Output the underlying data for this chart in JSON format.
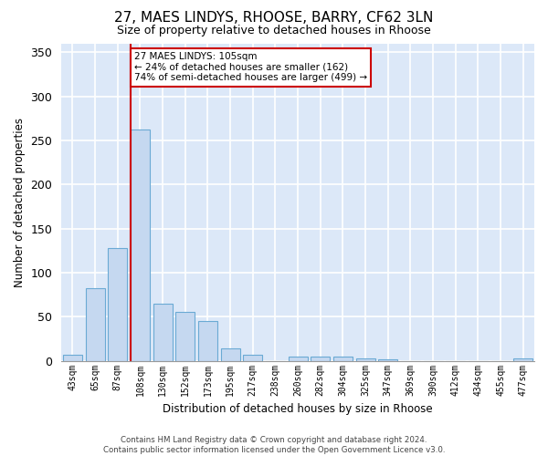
{
  "title1": "27, MAES LINDYS, RHOOSE, BARRY, CF62 3LN",
  "title2": "Size of property relative to detached houses in Rhoose",
  "xlabel": "Distribution of detached houses by size in Rhoose",
  "ylabel": "Number of detached properties",
  "footer1": "Contains HM Land Registry data © Crown copyright and database right 2024.",
  "footer2": "Contains public sector information licensed under the Open Government Licence v3.0.",
  "annotation_line1": "27 MAES LINDYS: 105sqm",
  "annotation_line2": "← 24% of detached houses are smaller (162)",
  "annotation_line3": "74% of semi-detached houses are larger (499) →",
  "bar_labels": [
    "43sqm",
    "65sqm",
    "87sqm",
    "108sqm",
    "130sqm",
    "152sqm",
    "173sqm",
    "195sqm",
    "217sqm",
    "238sqm",
    "260sqm",
    "282sqm",
    "304sqm",
    "325sqm",
    "347sqm",
    "369sqm",
    "390sqm",
    "412sqm",
    "434sqm",
    "455sqm",
    "477sqm"
  ],
  "bar_values": [
    7,
    82,
    128,
    262,
    65,
    55,
    45,
    14,
    7,
    0,
    5,
    5,
    5,
    3,
    2,
    0,
    0,
    0,
    0,
    0,
    3
  ],
  "bar_color": "#c5d8f0",
  "bar_edge_color": "#6aaad4",
  "vline_color": "#cc0000",
  "vline_bar_index": 3,
  "annotation_box_edge": "#cc0000",
  "annotation_box_face": "#ffffff",
  "background_color": "#dce8f8",
  "ylim": [
    0,
    360
  ],
  "yticks": [
    0,
    50,
    100,
    150,
    200,
    250,
    300,
    350
  ],
  "grid_color": "#ffffff",
  "figsize": [
    6.0,
    5.0
  ],
  "dpi": 100
}
